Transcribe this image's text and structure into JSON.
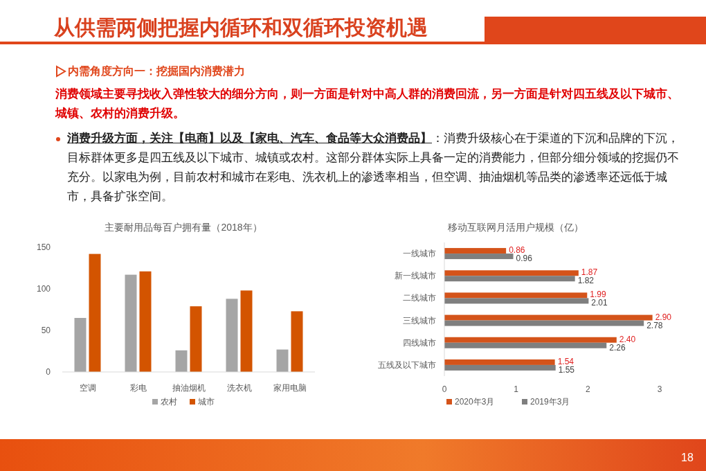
{
  "chart_data": [
    {
      "type": "other",
      "title": "从供需两侧把握内循环和双循环投资机遇",
      "subtitle": "内需角度方向一：挖掘国内消费潜力",
      "annotations": [
        "消费领域主要寻找收入弹性较大的细分方向，则一方面是针对中高人群的消费回流，另一方面是针对四五线及以下城市、城镇、农村的消费升级。",
        "消费升级方面，关注【电商】以及【家电、汽车、食品等大众消费品】",
        "：消费升级核心在于渠道的下沉和品牌的下沉，目标群体更多是四五线及以下城市、城镇或农村。这部分群体实际上具备一定的消费能力，但部分细分领域的挖掘仍不充分。以家电为例，目前农村和城市在彩电、洗衣机上的渗透率相当，但空调、抽油烟机等品类的渗透率还远低于城市，具备扩张空间。",
        "18"
      ]
    },
    {
      "type": "bar",
      "title": "主要耐用品每百户拥有量（2018年）",
      "categories": [
        "空调",
        "彩电",
        "抽油烟机",
        "洗衣机",
        "家用电脑"
      ],
      "series": [
        {
          "name": "农村",
          "color": "#a5a5a5",
          "values": [
            65,
            117,
            26,
            88,
            27
          ]
        },
        {
          "name": "城市",
          "color": "#d35400",
          "values": [
            142,
            121,
            79,
            98,
            73
          ]
        }
      ],
      "ylim": [
        0,
        150
      ],
      "yticks": [
        0,
        50,
        100,
        150
      ],
      "legend": "bottom"
    },
    {
      "type": "bar",
      "orientation": "horizontal",
      "title": "移动互联网月活用户规模（亿）",
      "categories": [
        "一线城市",
        "新一线城市",
        "二线城市",
        "三线城市",
        "四线城市",
        "五线及以下城市"
      ],
      "series": [
        {
          "name": "2020年3月",
          "color": "#d4531a",
          "values": [
            0.86,
            1.87,
            1.99,
            2.9,
            2.4,
            1.54
          ],
          "value_labels": [
            "0.86",
            "1.87",
            "1.99",
            "2.90",
            "2.40",
            "1.54"
          ]
        },
        {
          "name": "2019年3月",
          "color": "#7f7f7f",
          "values": [
            0.96,
            1.82,
            2.01,
            2.78,
            2.26,
            1.55
          ],
          "value_labels": [
            "0.96",
            "1.82",
            "2.01",
            "2.78",
            "2.26",
            "1.55"
          ]
        }
      ],
      "xlim": [
        0,
        3
      ],
      "xticks": [
        0,
        1,
        2,
        3
      ],
      "legend": "bottom"
    }
  ]
}
